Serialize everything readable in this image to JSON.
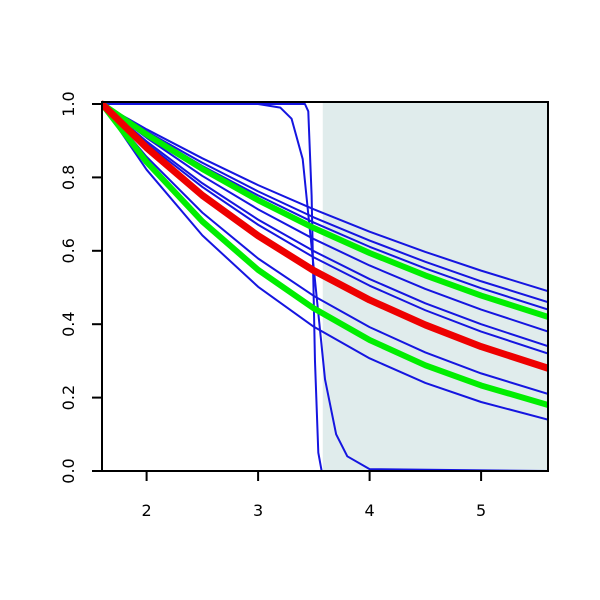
{
  "chart_data": {
    "type": "line",
    "x": [
      1.6,
      2,
      2.5,
      3,
      3.5,
      4,
      4.5,
      5,
      5.6
    ],
    "xlim": [
      1.6,
      5.6
    ],
    "ylim": [
      0,
      1
    ],
    "xticks": [
      2,
      3,
      4,
      5
    ],
    "yticks": [
      {
        "value": 0,
        "label": "0.0"
      },
      {
        "value": 0.2,
        "label": "0.2"
      },
      {
        "value": 0.4,
        "label": "0.4"
      },
      {
        "value": 0.6,
        "label": "0.6"
      },
      {
        "value": 0.8,
        "label": "0.8"
      },
      {
        "value": 1,
        "label": "1.0"
      }
    ],
    "shaded_region": {
      "xlim": [
        3.58,
        5.6
      ],
      "color": "#e0ecec"
    },
    "series": [
      {
        "color": "#1515e0",
        "line_width": 2,
        "values": [
          1,
          0.931,
          0.852,
          0.779,
          0.713,
          0.652,
          0.597,
          0.546,
          0.49
        ]
      },
      {
        "color": "#1515e0",
        "line_width": 2,
        "values": [
          1,
          0.925,
          0.84,
          0.762,
          0.691,
          0.628,
          0.57,
          0.517,
          0.46
        ]
      },
      {
        "color": "#1515e0",
        "line_width": 2,
        "values": [
          1,
          0.921,
          0.831,
          0.751,
          0.677,
          0.611,
          0.552,
          0.498,
          0.44
        ]
      },
      {
        "color": "#1515e0",
        "line_width": 2,
        "values": [
          1,
          0.908,
          0.804,
          0.713,
          0.632,
          0.56,
          0.496,
          0.44,
          0.38
        ]
      },
      {
        "color": "#1515e0",
        "line_width": 2,
        "values": [
          1,
          0.898,
          0.784,
          0.685,
          0.599,
          0.523,
          0.457,
          0.4,
          0.34
        ]
      },
      {
        "color": "#1515e0",
        "line_width": 2,
        "values": [
          1,
          0.892,
          0.774,
          0.671,
          0.582,
          0.505,
          0.438,
          0.38,
          0.32
        ]
      },
      {
        "color": "#1515e0",
        "line_width": 2,
        "values": [
          1,
          0.856,
          0.704,
          0.579,
          0.477,
          0.392,
          0.323,
          0.266,
          0.21
        ]
      },
      {
        "color": "#1515e0",
        "line_width": 2,
        "values": [
          1,
          0.821,
          0.642,
          0.502,
          0.393,
          0.307,
          0.24,
          0.188,
          0.14
        ]
      },
      {
        "color": "#1515e0",
        "line_width": 2,
        "x": [
          1.6,
          3.42,
          3.45,
          3.48,
          3.51,
          3.54,
          3.57,
          5.6
        ],
        "values": [
          1,
          1,
          0.98,
          0.75,
          0.3,
          0.05,
          0,
          0
        ]
      },
      {
        "color": "#1515e0",
        "line_width": 2,
        "x": [
          1.6,
          3.0,
          3.2,
          3.3,
          3.4,
          3.5,
          3.6,
          3.7,
          3.8,
          4.0,
          5.6
        ],
        "values": [
          1,
          1,
          0.99,
          0.96,
          0.85,
          0.55,
          0.25,
          0.1,
          0.04,
          0.005,
          0
        ]
      },
      {
        "color": "#00ee00",
        "line_width": 6,
        "values": [
          1,
          0.917,
          0.823,
          0.738,
          0.662,
          0.594,
          0.533,
          0.478,
          0.42
        ]
      },
      {
        "color": "#00ee00",
        "line_width": 6,
        "values": [
          1,
          0.842,
          0.68,
          0.548,
          0.443,
          0.357,
          0.288,
          0.233,
          0.18
        ]
      },
      {
        "color": "#ee0000",
        "line_width": 7,
        "values": [
          1,
          0.881,
          0.751,
          0.641,
          0.546,
          0.466,
          0.398,
          0.339,
          0.28
        ]
      }
    ]
  }
}
